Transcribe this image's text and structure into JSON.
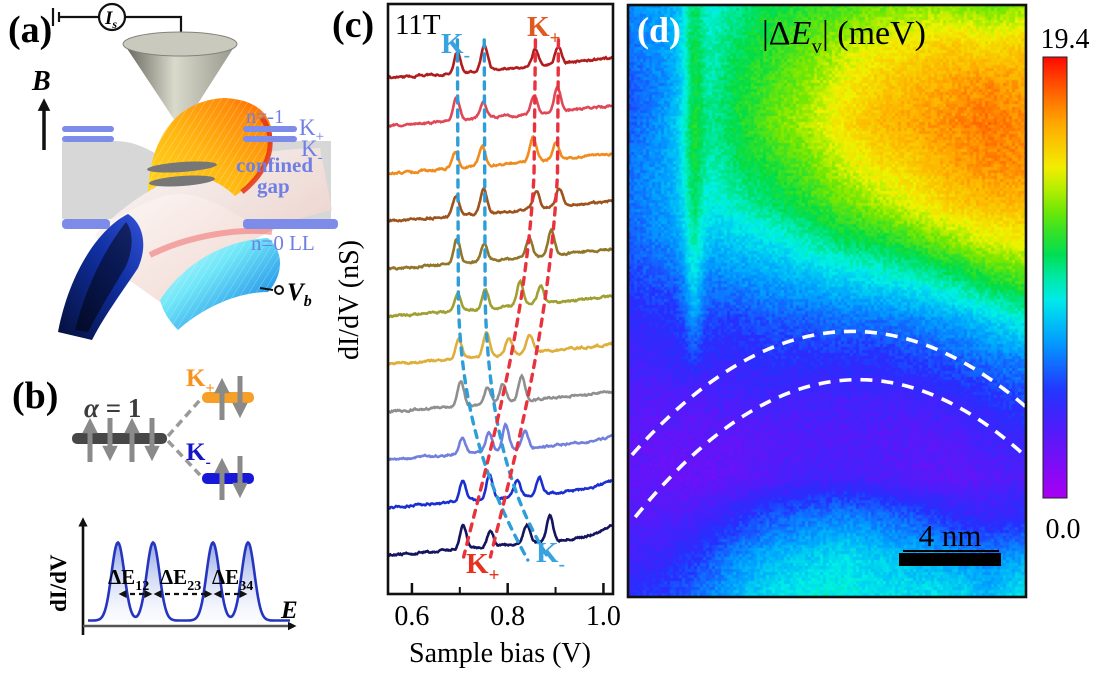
{
  "panel_a": {
    "label": "(a)",
    "current_meter": {
      "main": "I",
      "sub": "s"
    },
    "field_label": "B",
    "level_color": "#7c8ce8",
    "labels": {
      "n_minus1": "n=-1",
      "k_plus": {
        "main": "K",
        "sub": "+"
      },
      "k_minus": {
        "main": "K",
        "sub": "-"
      },
      "confined_line1": "confined",
      "confined_line2": "gap",
      "n0": "n=0 LL",
      "bias": {
        "main": "V",
        "sub": "b"
      }
    }
  },
  "panel_b": {
    "label": "(b)",
    "alpha_label": {
      "italic": "α",
      "rest": " = 1"
    },
    "k_plus": {
      "main": "K",
      "sub": "+"
    },
    "k_minus": {
      "main": "K",
      "sub": "-"
    },
    "colors": {
      "parent_bar": "#474747",
      "k_plus_bar": "#f6a028",
      "k_minus_bar": "#1818d8",
      "k_plus_text": "#f6921e",
      "k_minus_text": "#1515c8",
      "spin_arrow": "#8a8a8a"
    }
  },
  "panel_c_label": "(c)",
  "panel_d_label": "(d)",
  "chart_data": [
    {
      "type": "line",
      "panel": "c",
      "title": "11T",
      "xlabel": "Sample bias (V)",
      "ylabel": "dI/dV (nS)",
      "xlim": [
        0.55,
        1.02
      ],
      "xticks": [
        "0.6",
        "0.8",
        "1.0"
      ],
      "xticks_values": [
        0.6,
        0.8,
        1.0
      ],
      "xticks_minor": [
        0.7,
        0.9
      ],
      "note": "Eleven vertically offset dI/dV spectra at B = 11 T; each shows two valley-split peak pairs (K+ / K-) that exchange order from top to bottom spectra",
      "series": [
        {
          "color": "#b01d1d",
          "peaks_V": [
            0.695,
            0.751,
            0.858,
            0.906
          ]
        },
        {
          "color": "#e04858",
          "peaks_V": [
            0.693,
            0.749,
            0.856,
            0.904
          ]
        },
        {
          "color": "#f08c1e",
          "peaks_V": [
            0.69,
            0.747,
            0.853,
            0.901
          ]
        },
        {
          "color": "#9e521c",
          "peaks_V": [
            0.692,
            0.75,
            0.86,
            0.908
          ]
        },
        {
          "color": "#91762a",
          "peaks_V": [
            0.694,
            0.751,
            0.845,
            0.891
          ]
        },
        {
          "color": "#a0a032",
          "peaks_V": [
            0.696,
            0.753,
            0.826,
            0.869
          ]
        },
        {
          "color": "#dfaf3c",
          "peaks_V": [
            0.698,
            0.756,
            0.803,
            0.846
          ]
        },
        {
          "color": "#8f8f8f",
          "peaks_V": [
            0.702,
            0.758,
            0.79,
            0.829
          ]
        },
        {
          "color": "#7280dc",
          "peaks_V": [
            0.705,
            0.761,
            0.796,
            0.836
          ]
        },
        {
          "color": "#1b2fd0",
          "peaks_V": [
            0.706,
            0.762,
            0.82,
            0.866
          ]
        },
        {
          "color": "#14145f",
          "peaks_V": [
            0.707,
            0.764,
            0.84,
            0.888
          ]
        }
      ],
      "guides": [
        {
          "color": "#2e9ed8",
          "path": [
            [
              0.695,
              40
            ],
            [
              0.697,
              300
            ],
            [
              0.703,
              430
            ],
            [
              0.78,
              505
            ],
            [
              0.842,
              560
            ]
          ]
        },
        {
          "color": "#2e9ed8",
          "path": [
            [
              0.751,
              40
            ],
            [
              0.753,
              300
            ],
            [
              0.76,
              435
            ],
            [
              0.82,
              510
            ],
            [
              0.888,
              560
            ]
          ]
        },
        {
          "color": "#e8333e",
          "path": [
            [
              0.858,
              40
            ],
            [
              0.855,
              175
            ],
            [
              0.838,
              330
            ],
            [
              0.755,
              465
            ],
            [
              0.708,
              557
            ]
          ]
        },
        {
          "color": "#e8333e",
          "path": [
            [
              0.906,
              40
            ],
            [
              0.904,
              175
            ],
            [
              0.885,
              340
            ],
            [
              0.805,
              475
            ],
            [
              0.764,
              557
            ]
          ]
        }
      ],
      "labels": {
        "field": "11T",
        "k_minus_top": {
          "main": "K",
          "sub": "-",
          "color": "#39a3e0"
        },
        "k_plus_top": {
          "main": "K",
          "sub": "+",
          "color": "#e05a20"
        },
        "k_plus_bottom": {
          "main": "K",
          "sub": "+",
          "color": "#e63020"
        },
        "k_minus_bottom": {
          "main": "K",
          "sub": "-",
          "color": "#39a3e0"
        }
      }
    },
    {
      "type": "heatmap",
      "panel": "d",
      "title_parts": {
        "open": "|Δ",
        "E": "E",
        "sub": "v",
        "close": "| (meV)"
      },
      "colorbar": {
        "max_label": "19.4",
        "min_label": "0.0",
        "max": 19.4,
        "min": 0.0
      },
      "scalebar_label": "4 nm",
      "colormap_stops": [
        [
          0.0,
          "#a800f2"
        ],
        [
          0.12,
          "#6414f8"
        ],
        [
          0.24,
          "#2430ff"
        ],
        [
          0.36,
          "#00a2ff"
        ],
        [
          0.46,
          "#00f2e6"
        ],
        [
          0.56,
          "#00dc46"
        ],
        [
          0.66,
          "#7ae800"
        ],
        [
          0.74,
          "#f0f400"
        ],
        [
          0.84,
          "#ffb000"
        ],
        [
          0.92,
          "#ff6400"
        ],
        [
          1.0,
          "#ff0800"
        ]
      ],
      "values_meV": [
        [
          6.5,
          7.0,
          8.5,
          10.0,
          11.0,
          11.5,
          12.0,
          12.5,
          13.0,
          13.0,
          12.5,
          13.0
        ],
        [
          6.0,
          7.0,
          9.0,
          10.5,
          11.5,
          12.5,
          13.5,
          14.5,
          15.0,
          15.5,
          15.0,
          15.5
        ],
        [
          5.5,
          6.5,
          9.0,
          11.0,
          12.0,
          13.0,
          14.5,
          15.5,
          16.0,
          16.5,
          17.0,
          16.5
        ],
        [
          5.5,
          7.0,
          9.5,
          11.0,
          12.5,
          13.5,
          15.0,
          16.0,
          16.5,
          17.0,
          17.5,
          17.0
        ],
        [
          6.0,
          7.0,
          9.0,
          10.5,
          11.5,
          12.5,
          14.0,
          15.0,
          15.5,
          16.5,
          17.0,
          17.0
        ],
        [
          6.0,
          7.0,
          8.5,
          9.5,
          10.5,
          11.5,
          12.5,
          13.5,
          14.5,
          15.5,
          16.0,
          16.0
        ],
        [
          5.5,
          6.5,
          7.5,
          8.0,
          8.5,
          9.5,
          10.5,
          11.0,
          12.0,
          13.0,
          14.0,
          14.5
        ],
        [
          5.0,
          5.5,
          6.0,
          6.5,
          7.0,
          7.5,
          8.0,
          8.5,
          9.0,
          10.0,
          11.0,
          12.0
        ],
        [
          4.0,
          4.5,
          5.0,
          5.0,
          5.5,
          5.5,
          6.0,
          6.0,
          6.5,
          7.0,
          8.0,
          9.0
        ],
        [
          3.5,
          4.0,
          4.0,
          4.0,
          4.5,
          4.5,
          4.5,
          4.5,
          5.0,
          5.5,
          6.0,
          6.5
        ],
        [
          3.0,
          3.0,
          3.0,
          3.5,
          3.5,
          3.5,
          3.5,
          3.5,
          3.5,
          4.0,
          4.5,
          5.0
        ],
        [
          2.5,
          2.5,
          2.5,
          2.5,
          2.8,
          3.0,
          3.0,
          3.0,
          2.8,
          3.0,
          3.5,
          4.0
        ],
        [
          2.5,
          2.2,
          2.2,
          2.5,
          3.0,
          3.5,
          3.5,
          3.2,
          2.8,
          2.5,
          2.8,
          3.2
        ],
        [
          3.0,
          3.0,
          3.5,
          4.5,
          5.5,
          6.0,
          6.5,
          6.0,
          5.5,
          4.5,
          4.0,
          4.5
        ],
        [
          3.5,
          4.0,
          5.0,
          6.5,
          7.5,
          8.0,
          8.5,
          8.0,
          7.5,
          7.0,
          6.5,
          7.0
        ],
        [
          4.5,
          5.0,
          6.0,
          7.5,
          8.5,
          9.0,
          9.0,
          8.5,
          8.5,
          8.5,
          7.5,
          9.0
        ]
      ],
      "green_streak": {
        "x_frac": 0.165,
        "width_frac": 0.018,
        "boost_meV": 2.2,
        "fade_y_frac": 0.5
      },
      "dashed_arcs": [
        {
          "start": [
            0.01,
            0.76
          ],
          "ctrl": [
            0.5,
            0.388
          ],
          "end": [
            1.0,
            0.679
          ]
        },
        {
          "start": [
            0.018,
            0.865
          ],
          "ctrl": [
            0.507,
            0.459
          ],
          "end": [
            1.0,
            0.763
          ]
        }
      ]
    },
    {
      "type": "line",
      "panel": "b-schematic",
      "ylabel": "dI/dV",
      "xlabel": "E",
      "peak_centers_frac": [
        0.164,
        0.329,
        0.61,
        0.775
      ],
      "gap_labels": [
        {
          "main": "ΔE",
          "sub": "12"
        },
        {
          "main": "ΔE",
          "sub": "23"
        },
        {
          "main": "ΔE",
          "sub": "34"
        }
      ]
    }
  ]
}
